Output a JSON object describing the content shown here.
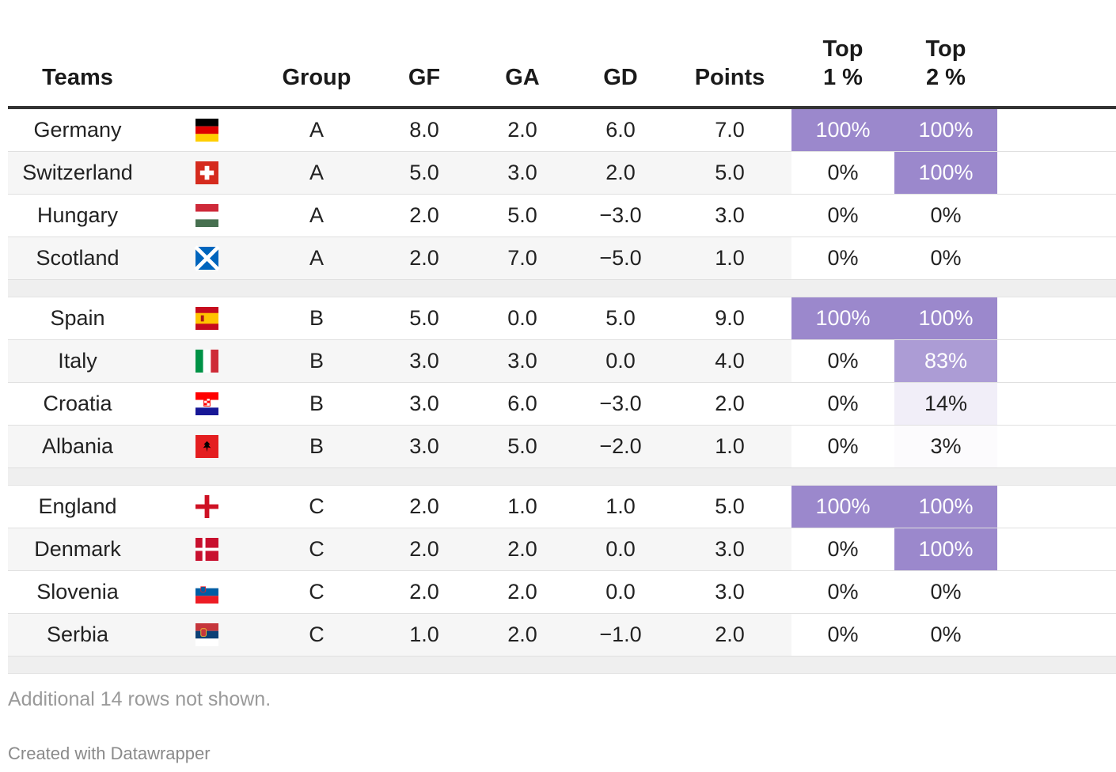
{
  "table": {
    "headers": {
      "team": "Teams",
      "group": "Group",
      "gf": "GF",
      "ga": "GA",
      "gd": "GD",
      "points": "Points",
      "top1": "Top\n1 %",
      "top2": "Top\n2 %"
    },
    "highlight_color": "#9b88cc",
    "groups": [
      {
        "rows": [
          {
            "team": "Germany",
            "flag": "germany-flag-icon",
            "group": "A",
            "gf": "8.0",
            "ga": "2.0",
            "gd": "6.0",
            "points": "7.0",
            "top1": "100%",
            "top1_value": 1.0,
            "top2": "100%",
            "top2_value": 1.0
          },
          {
            "team": "Switzerland",
            "flag": "switzerland-flag-icon",
            "group": "A",
            "gf": "5.0",
            "ga": "3.0",
            "gd": "2.0",
            "points": "5.0",
            "top1": "0%",
            "top1_value": 0.0,
            "top2": "100%",
            "top2_value": 1.0
          },
          {
            "team": "Hungary",
            "flag": "hungary-flag-icon",
            "group": "A",
            "gf": "2.0",
            "ga": "5.0",
            "gd": "−3.0",
            "points": "3.0",
            "top1": "0%",
            "top1_value": 0.0,
            "top2": "0%",
            "top2_value": 0.0
          },
          {
            "team": "Scotland",
            "flag": "scotland-flag-icon",
            "group": "A",
            "gf": "2.0",
            "ga": "7.0",
            "gd": "−5.0",
            "points": "1.0",
            "top1": "0%",
            "top1_value": 0.0,
            "top2": "0%",
            "top2_value": 0.0
          }
        ]
      },
      {
        "rows": [
          {
            "team": "Spain",
            "flag": "spain-flag-icon",
            "group": "B",
            "gf": "5.0",
            "ga": "0.0",
            "gd": "5.0",
            "points": "9.0",
            "top1": "100%",
            "top1_value": 1.0,
            "top2": "100%",
            "top2_value": 1.0
          },
          {
            "team": "Italy",
            "flag": "italy-flag-icon",
            "group": "B",
            "gf": "3.0",
            "ga": "3.0",
            "gd": "0.0",
            "points": "4.0",
            "top1": "0%",
            "top1_value": 0.0,
            "top2": "83%",
            "top2_value": 0.83
          },
          {
            "team": "Croatia",
            "flag": "croatia-flag-icon",
            "group": "B",
            "gf": "3.0",
            "ga": "6.0",
            "gd": "−3.0",
            "points": "2.0",
            "top1": "0%",
            "top1_value": 0.0,
            "top2": "14%",
            "top2_value": 0.14
          },
          {
            "team": "Albania",
            "flag": "albania-flag-icon",
            "group": "B",
            "gf": "3.0",
            "ga": "5.0",
            "gd": "−2.0",
            "points": "1.0",
            "top1": "0%",
            "top1_value": 0.0,
            "top2": "3%",
            "top2_value": 0.03
          }
        ]
      },
      {
        "rows": [
          {
            "team": "England",
            "flag": "england-flag-icon",
            "group": "C",
            "gf": "2.0",
            "ga": "1.0",
            "gd": "1.0",
            "points": "5.0",
            "top1": "100%",
            "top1_value": 1.0,
            "top2": "100%",
            "top2_value": 1.0
          },
          {
            "team": "Denmark",
            "flag": "denmark-flag-icon",
            "group": "C",
            "gf": "2.0",
            "ga": "2.0",
            "gd": "0.0",
            "points": "3.0",
            "top1": "0%",
            "top1_value": 0.0,
            "top2": "100%",
            "top2_value": 1.0
          },
          {
            "team": "Slovenia",
            "flag": "slovenia-flag-icon",
            "group": "C",
            "gf": "2.0",
            "ga": "2.0",
            "gd": "0.0",
            "points": "3.0",
            "top1": "0%",
            "top1_value": 0.0,
            "top2": "0%",
            "top2_value": 0.0
          },
          {
            "team": "Serbia",
            "flag": "serbia-flag-icon",
            "group": "C",
            "gf": "1.0",
            "ga": "2.0",
            "gd": "−1.0",
            "points": "2.0",
            "top1": "0%",
            "top1_value": 0.0,
            "top2": "0%",
            "top2_value": 0.0
          }
        ]
      }
    ]
  },
  "chart_data": {
    "type": "table",
    "columns": [
      "Teams",
      "Group",
      "GF",
      "GA",
      "GD",
      "Points",
      "Top 1 %",
      "Top 2 %"
    ],
    "rows": [
      [
        "Germany",
        "A",
        8.0,
        2.0,
        6.0,
        7.0,
        "100%",
        "100%"
      ],
      [
        "Switzerland",
        "A",
        5.0,
        3.0,
        2.0,
        5.0,
        "0%",
        "100%"
      ],
      [
        "Hungary",
        "A",
        2.0,
        5.0,
        -3.0,
        3.0,
        "0%",
        "0%"
      ],
      [
        "Scotland",
        "A",
        2.0,
        7.0,
        -5.0,
        1.0,
        "0%",
        "0%"
      ],
      [
        "Spain",
        "B",
        5.0,
        0.0,
        5.0,
        9.0,
        "100%",
        "100%"
      ],
      [
        "Italy",
        "B",
        3.0,
        3.0,
        0.0,
        4.0,
        "0%",
        "83%"
      ],
      [
        "Croatia",
        "B",
        3.0,
        6.0,
        -3.0,
        2.0,
        "0%",
        "14%"
      ],
      [
        "Albania",
        "B",
        3.0,
        5.0,
        -2.0,
        1.0,
        "0%",
        "3%"
      ],
      [
        "England",
        "C",
        2.0,
        1.0,
        1.0,
        5.0,
        "100%",
        "100%"
      ],
      [
        "Denmark",
        "C",
        2.0,
        2.0,
        0.0,
        3.0,
        "0%",
        "100%"
      ],
      [
        "Slovenia",
        "C",
        2.0,
        2.0,
        0.0,
        3.0,
        "0%",
        "0%"
      ],
      [
        "Serbia",
        "C",
        1.0,
        2.0,
        -1.0,
        2.0,
        "0%",
        "0%"
      ]
    ]
  },
  "footnote": "Additional 14 rows not shown.",
  "credit": "Created with Datawrapper"
}
